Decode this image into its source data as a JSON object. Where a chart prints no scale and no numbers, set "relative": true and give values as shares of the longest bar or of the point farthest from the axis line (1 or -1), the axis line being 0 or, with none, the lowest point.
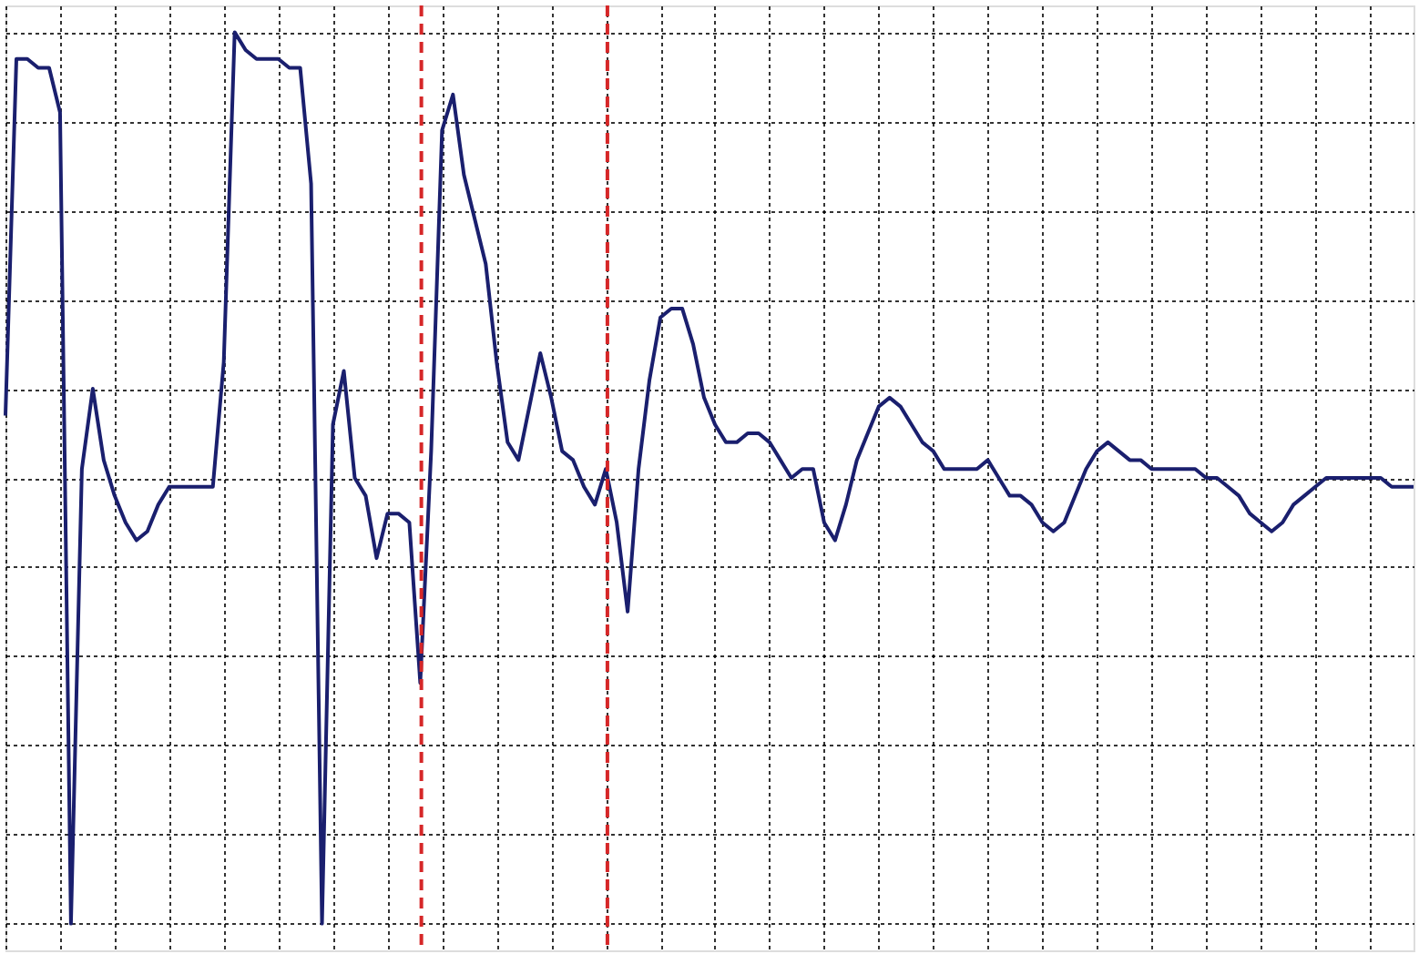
{
  "chart_data": {
    "type": "line",
    "relative": true,
    "grid": true,
    "tick_labels": false,
    "marker": "none",
    "line_style": "solid",
    "categories": [
      null,
      null,
      null,
      null,
      null,
      null,
      null,
      null,
      null,
      null,
      null,
      null,
      null,
      null,
      null,
      null,
      null,
      null,
      null,
      null,
      null,
      null,
      null,
      null,
      null,
      null,
      null,
      null,
      null,
      null,
      null,
      null,
      null,
      null,
      null,
      null,
      null,
      null,
      null,
      null,
      null,
      null,
      null,
      null,
      null,
      null,
      null,
      null,
      null,
      null,
      null,
      null,
      null,
      null,
      null,
      null,
      null,
      null,
      null,
      null,
      null,
      null,
      null,
      null,
      null,
      null,
      null,
      null,
      null,
      null,
      null,
      null,
      null,
      null,
      null,
      null,
      null,
      null,
      null,
      null,
      null,
      null,
      null,
      null,
      null,
      null,
      null,
      null,
      null,
      null,
      null,
      null,
      null,
      null,
      null,
      null,
      null,
      null,
      null,
      null,
      null,
      null,
      null,
      null,
      null,
      null,
      null,
      null,
      null,
      null,
      null,
      null,
      null,
      null,
      null,
      null,
      null,
      null,
      null,
      null,
      null,
      null,
      null,
      null,
      null,
      null,
      null,
      null,
      null,
      null
    ],
    "series": [
      {
        "color": "#1a1f6e",
        "values": [
          0.57,
          0.97,
          0.97,
          0.96,
          0.96,
          0.91,
          0,
          0.51,
          0.6,
          0.52,
          0.48,
          0.45,
          0.43,
          0.44,
          0.47,
          0.49,
          0.49,
          0.49,
          0.49,
          0.49,
          0.63,
          1,
          0.98,
          0.97,
          0.97,
          0.97,
          0.96,
          0.96,
          0.83,
          0,
          0.56,
          0.62,
          0.5,
          0.48,
          0.41,
          0.46,
          0.46,
          0.45,
          0.27,
          0.53,
          0.89,
          0.93,
          0.84,
          0.79,
          0.74,
          0.63,
          0.54,
          0.52,
          0.58,
          0.64,
          0.59,
          0.53,
          0.52,
          0.49,
          0.47,
          0.51,
          0.45,
          0.35,
          0.51,
          0.61,
          0.68,
          0.69,
          0.69,
          0.65,
          0.59,
          0.56,
          0.54,
          0.54,
          0.55,
          0.55,
          0.54,
          0.52,
          0.5,
          0.51,
          0.51,
          0.45,
          0.43,
          0.47,
          0.52,
          0.55,
          0.58,
          0.59,
          0.58,
          0.56,
          0.54,
          0.53,
          0.51,
          0.51,
          0.51,
          0.51,
          0.52,
          0.5,
          0.48,
          0.48,
          0.47,
          0.45,
          0.44,
          0.45,
          0.48,
          0.51,
          0.53,
          0.54,
          0.53,
          0.52,
          0.52,
          0.51,
          0.51,
          0.51,
          0.51,
          0.51,
          0.5,
          0.5,
          0.49,
          0.48,
          0.46,
          0.45,
          0.44,
          0.45,
          0.47,
          0.48,
          0.49,
          0.5,
          0.5,
          0.5,
          0.5,
          0.5,
          0.5,
          0.49,
          0.49,
          0.49
        ]
      }
    ],
    "ylabel": null
  }
}
